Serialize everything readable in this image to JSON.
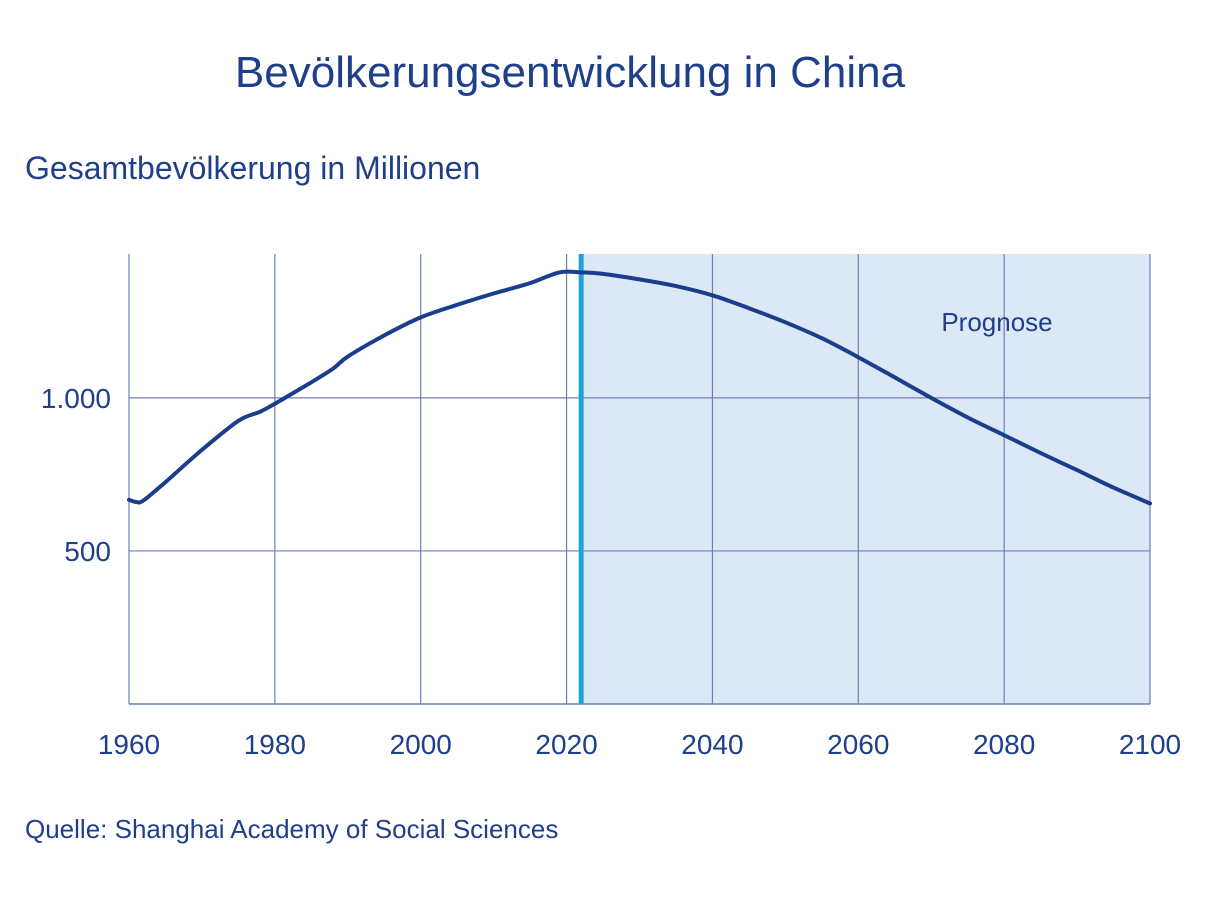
{
  "title": "Bevölkerungsentwicklung in China",
  "subtitle": "Gesamtbevölkerung in Millionen",
  "source": "Quelle: Shanghai Academy of Social Sciences",
  "colors": {
    "text": "#1f3f8a",
    "line": "#1a3d8c",
    "grid": "#6e7fb8",
    "forecast_fill": "#dce8f6",
    "forecast_marker": "#1ea3d9"
  },
  "chart_data": {
    "type": "line",
    "title": "Bevölkerungsentwicklung in China",
    "ylabel": "Gesamtbevölkerung in Millionen",
    "xlim": [
      1960,
      2100
    ],
    "ylim": [
      0,
      1470
    ],
    "x_ticks": [
      1960,
      1980,
      2000,
      2020,
      2040,
      2060,
      2080,
      2100
    ],
    "x_tick_labels": [
      "1960",
      "1980",
      "2000",
      "2020",
      "2040",
      "2060",
      "2080",
      "2100"
    ],
    "y_ticks": [
      500,
      1000
    ],
    "y_tick_labels": [
      "500",
      "1.000"
    ],
    "grid": true,
    "forecast": {
      "start": 2022,
      "label": "Prognose"
    },
    "series": [
      {
        "x": [
          1960,
          1961,
          1962,
          1965,
          1970,
          1975,
          1978,
          1980,
          1985,
          1988,
          1990,
          1995,
          2000,
          2005,
          2010,
          2015,
          2019,
          2022,
          2025,
          2030,
          2035,
          2040,
          2045,
          2050,
          2055,
          2060,
          2065,
          2070,
          2075,
          2080,
          2085,
          2090,
          2095,
          2100
        ],
        "values": [
          667,
          660,
          665,
          725,
          830,
          925,
          955,
          981,
          1051,
          1096,
          1135,
          1204,
          1263,
          1304,
          1341,
          1375,
          1410,
          1410,
          1405,
          1387,
          1365,
          1335,
          1293,
          1247,
          1195,
          1133,
          1067,
          1000,
          936,
          878,
          820,
          764,
          707,
          655
        ]
      }
    ]
  }
}
